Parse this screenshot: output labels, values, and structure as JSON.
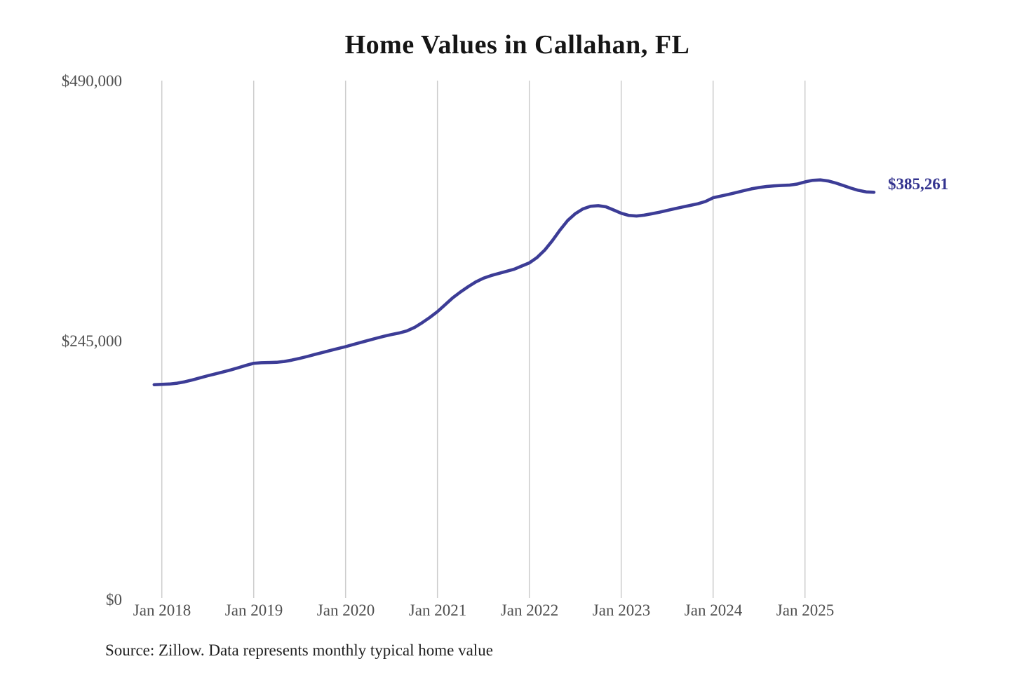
{
  "title": "Home Values in Callahan, FL",
  "latest_value_label": "$385,261",
  "source_note": "Source: Zillow. Data represents monthly typical home value",
  "colors": {
    "line": "#3c3c96",
    "latest_label_text": "#33338f",
    "gridline": "#cccccc",
    "axis_text": "#4f4f4f",
    "title_text": "#151515",
    "background": "#ffffff"
  },
  "chart_data": {
    "type": "line",
    "title": "Home Values in Callahan, FL",
    "xlabel": "",
    "ylabel": "",
    "ylim": [
      0,
      490000
    ],
    "y_tick_values": [
      0,
      245000,
      490000
    ],
    "y_tick_labels": [
      "$0",
      "$245,000",
      "$490,000"
    ],
    "x_tick_labels": [
      "Jan 2018",
      "Jan 2019",
      "Jan 2020",
      "Jan 2021",
      "Jan 2022",
      "Jan 2023",
      "Jan 2024",
      "Jan 2025"
    ],
    "grid": "vertical-only",
    "legend": "none",
    "latest_value": 385261,
    "series": [
      {
        "name": "Typical home value (USD)",
        "months": [
          "2017-12",
          "2018-01",
          "2018-02",
          "2018-03",
          "2018-04",
          "2018-05",
          "2018-06",
          "2018-07",
          "2018-08",
          "2018-09",
          "2018-10",
          "2018-11",
          "2018-12",
          "2019-01",
          "2019-02",
          "2019-03",
          "2019-04",
          "2019-05",
          "2019-06",
          "2019-07",
          "2019-08",
          "2019-09",
          "2019-10",
          "2019-11",
          "2019-12",
          "2020-01",
          "2020-02",
          "2020-03",
          "2020-04",
          "2020-05",
          "2020-06",
          "2020-07",
          "2020-08",
          "2020-09",
          "2020-10",
          "2020-11",
          "2020-12",
          "2021-01",
          "2021-02",
          "2021-03",
          "2021-04",
          "2021-05",
          "2021-06",
          "2021-07",
          "2021-08",
          "2021-09",
          "2021-10",
          "2021-11",
          "2021-12",
          "2022-01",
          "2022-02",
          "2022-03",
          "2022-04",
          "2022-05",
          "2022-06",
          "2022-07",
          "2022-08",
          "2022-09",
          "2022-10",
          "2022-11",
          "2022-12",
          "2023-01",
          "2023-02",
          "2023-03",
          "2023-04",
          "2023-05",
          "2023-06",
          "2023-07",
          "2023-08",
          "2023-09",
          "2023-10",
          "2023-11",
          "2023-12",
          "2024-01",
          "2024-02",
          "2024-03",
          "2024-04",
          "2024-05",
          "2024-06",
          "2024-07",
          "2024-08",
          "2024-09",
          "2024-10",
          "2024-11",
          "2024-12",
          "2025-01",
          "2025-02",
          "2025-03",
          "2025-04",
          "2025-05",
          "2025-06",
          "2025-07",
          "2025-08",
          "2025-09",
          "2025-10"
        ],
        "values": [
          203500,
          203800,
          204100,
          204900,
          206200,
          208000,
          210000,
          211900,
          213700,
          215500,
          217400,
          219500,
          221700,
          223700,
          224200,
          224400,
          224600,
          225400,
          226700,
          228300,
          230100,
          232000,
          233900,
          235800,
          237600,
          239400,
          241400,
          243400,
          245400,
          247300,
          249200,
          250800,
          252300,
          254200,
          257500,
          262000,
          267000,
          272500,
          279000,
          285500,
          291000,
          296000,
          300500,
          304000,
          306500,
          308500,
          310500,
          312500,
          315500,
          318500,
          323500,
          330500,
          339500,
          349500,
          358500,
          365000,
          369500,
          372000,
          372500,
          371500,
          368500,
          365400,
          363300,
          362800,
          363600,
          364900,
          366400,
          368000,
          369700,
          371300,
          372800,
          374300,
          376500,
          380000,
          381600,
          383200,
          384900,
          386700,
          388400,
          389700,
          390700,
          391300,
          391700,
          392000,
          393000,
          395000,
          396500,
          396900,
          395900,
          394000,
          391600,
          389100,
          387000,
          385600,
          385261
        ]
      }
    ]
  }
}
